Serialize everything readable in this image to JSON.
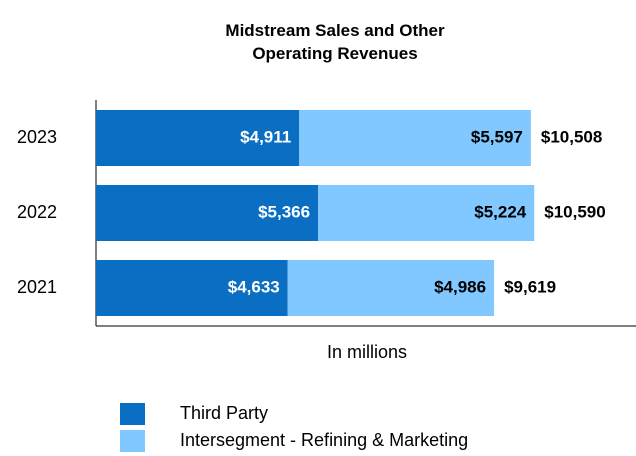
{
  "chart_data": {
    "type": "stacked_bar_horizontal",
    "title": "Midstream Sales and Other Operating Revenues",
    "x_label": "In millions",
    "categories": [
      "2023",
      "2022",
      "2021"
    ],
    "series": [
      {
        "name": "Third Party",
        "color": "#0a6fc2",
        "label_color": "#ffffff",
        "values": [
          4911,
          5366,
          4633
        ],
        "value_labels": [
          "$4,911",
          "$5,366",
          "$4,633"
        ]
      },
      {
        "name": "Intersegment - Refining & Marketing",
        "color": "#80c8ff",
        "label_color": "#000000",
        "values": [
          5597,
          5224,
          4986
        ],
        "value_labels": [
          "$5,597",
          "$5,224",
          "$4,986"
        ]
      }
    ],
    "totals": [
      10508,
      10590,
      9619
    ],
    "total_labels": [
      "$10,508",
      "$10,590",
      "$9,619"
    ],
    "xlim": [
      0,
      13000
    ]
  }
}
